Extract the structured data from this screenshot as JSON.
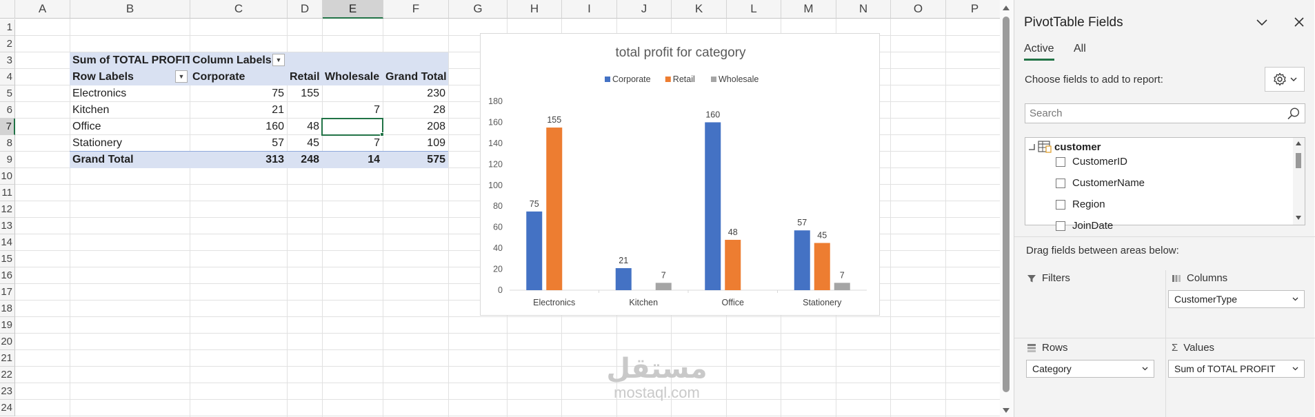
{
  "sheet": {
    "columns": [
      "A",
      "B",
      "C",
      "D",
      "E",
      "F",
      "G",
      "H",
      "I",
      "J",
      "K",
      "L",
      "M",
      "N",
      "O",
      "P"
    ],
    "selected_column": "E",
    "rows": [
      "1",
      "2",
      "3",
      "4",
      "5",
      "6",
      "7",
      "8",
      "9",
      "10",
      "11",
      "12",
      "13",
      "14",
      "15",
      "16",
      "17",
      "18",
      "19",
      "20",
      "21",
      "22",
      "23",
      "24"
    ],
    "selected_row": "7"
  },
  "pivot": {
    "header_values": "Sum of TOTAL PROFIT",
    "header_columns": "Column Labels",
    "header_rows": "Row Labels",
    "col_headers": [
      "Corporate",
      "Retail",
      "Wholesale",
      "Grand Total"
    ],
    "rows": [
      {
        "label": "Electronics",
        "values": [
          "75",
          "155",
          "",
          "230"
        ]
      },
      {
        "label": "Kitchen",
        "values": [
          "21",
          "",
          "7",
          "28"
        ]
      },
      {
        "label": "Office",
        "values": [
          "160",
          "48",
          "",
          "208"
        ]
      },
      {
        "label": "Stationery",
        "values": [
          "57",
          "45",
          "7",
          "109"
        ]
      }
    ],
    "grand_total": {
      "label": "Grand Total",
      "values": [
        "313",
        "248",
        "14",
        "575"
      ]
    }
  },
  "chart_data": {
    "type": "bar",
    "title": "total profit for category",
    "categories": [
      "Electronics",
      "Kitchen",
      "Office",
      "Stationery"
    ],
    "series": [
      {
        "name": "Corporate",
        "color": "#4472c4",
        "values": [
          75,
          21,
          160,
          57
        ]
      },
      {
        "name": "Retail",
        "color": "#ed7d31",
        "values": [
          155,
          null,
          48,
          45
        ]
      },
      {
        "name": "Wholesale",
        "color": "#a5a5a5",
        "values": [
          null,
          7,
          null,
          7
        ]
      }
    ],
    "ylim": [
      0,
      180
    ],
    "yticks": [
      0,
      20,
      40,
      60,
      80,
      100,
      120,
      140,
      160,
      180
    ],
    "legend": "top",
    "grid": false,
    "data_labels": true
  },
  "watermark": {
    "arabic": "مستقل",
    "latin": "mostaql.com"
  },
  "pane": {
    "title": "PivotTable Fields",
    "tabs": [
      "Active",
      "All"
    ],
    "active_tab": "Active",
    "choose_label": "Choose fields to add to report:",
    "search_placeholder": "Search",
    "table_name": "customer",
    "fields": [
      "CustomerID",
      "CustomerName",
      "Region",
      "JoinDate"
    ],
    "drag_label": "Drag fields between areas below:",
    "areas": {
      "filters": {
        "title": "Filters",
        "items": []
      },
      "columns": {
        "title": "Columns",
        "items": [
          "CustomerType"
        ]
      },
      "rows": {
        "title": "Rows",
        "items": [
          "Category"
        ]
      },
      "values": {
        "title": "Values",
        "items": [
          "Sum of TOTAL PROFIT"
        ]
      }
    }
  }
}
